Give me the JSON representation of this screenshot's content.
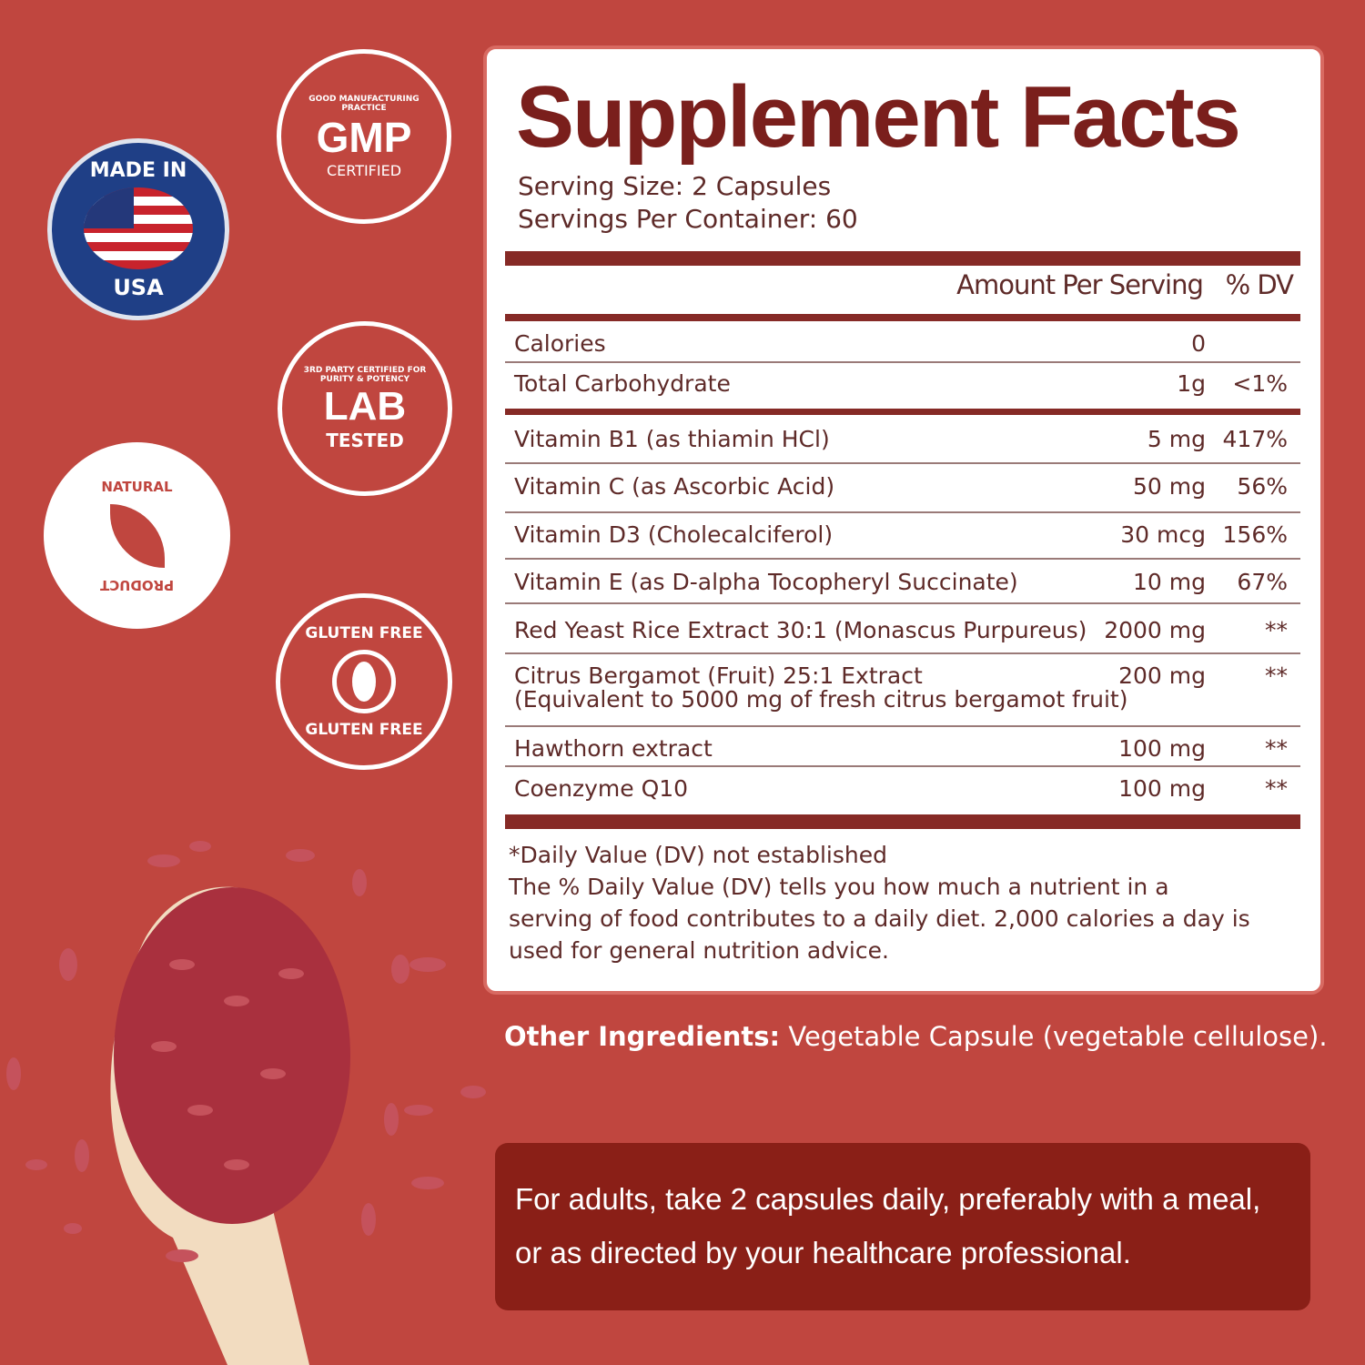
{
  "badges": {
    "usa": {
      "top": "MADE IN",
      "bottom": "USA"
    },
    "gmp": {
      "ring": "GOOD MANUFACTURING PRACTICE",
      "main": "GMP",
      "sub": "CERTIFIED"
    },
    "lab": {
      "ring": "3RD PARTY CERTIFIED FOR PURITY & POTENCY",
      "main": "LAB",
      "sub": "TESTED"
    },
    "natural": {
      "top": "NATURAL",
      "bottom": "PRODUCT"
    },
    "gluten": {
      "top": "GLUTEN FREE",
      "bottom": "GLUTEN FREE"
    }
  },
  "facts": {
    "title": "Supplement Facts",
    "serving_size": "Serving Size: 2 Capsules",
    "servings_per_container": "Servings Per Container: 60",
    "header_amount": "Amount Per Serving",
    "header_dv": "% DV",
    "rows": [
      {
        "name": "Calories",
        "amount": "0",
        "dv": ""
      },
      {
        "name": "Total Carbohydrate",
        "amount": "1g",
        "dv": "<1%"
      },
      {
        "name": "Vitamin B1 (as thiamin HCl)",
        "amount": "5 mg",
        "dv": "417%"
      },
      {
        "name": "Vitamin C (as Ascorbic Acid)",
        "amount": "50 mg",
        "dv": "56%"
      },
      {
        "name": "Vitamin D3 (Cholecalciferol)",
        "amount": "30 mcg",
        "dv": "156%"
      },
      {
        "name": "Vitamin E (as D-alpha Tocopheryl Succinate)",
        "amount": "10 mg",
        "dv": "67%"
      },
      {
        "name": "Red Yeast Rice Extract 30:1 (Monascus Purpureus)",
        "amount": "2000 mg",
        "dv": "**"
      },
      {
        "name": "Citrus Bergamot (Fruit) 25:1 Extract",
        "name2": "(Equivalent to 5000 mg of fresh citrus bergamot fruit)",
        "amount": "200  mg",
        "dv": "**"
      },
      {
        "name": "Hawthorn extract",
        "amount": "100 mg",
        "dv": "**"
      },
      {
        "name": "Coenzyme Q10",
        "amount": "100 mg",
        "dv": "**"
      }
    ],
    "footnote1": "*Daily Value (DV) not established",
    "footnote2": "The % Daily Value (DV) tells you how much a nutrient in a serving of food contributes to a daily diet. 2,000 calories a day is used for general nutrition advice."
  },
  "other_ingredients": {
    "label": "Other Ingredients:",
    "value": " Vegetable Capsule (vegetable cellulose)."
  },
  "directions": "For adults, take 2 capsules daily, preferably with a meal, or as directed by your healthcare professional.",
  "colors": {
    "background": "#c0463f",
    "accent": "#862a26",
    "directions_box": "#8a1f17"
  }
}
